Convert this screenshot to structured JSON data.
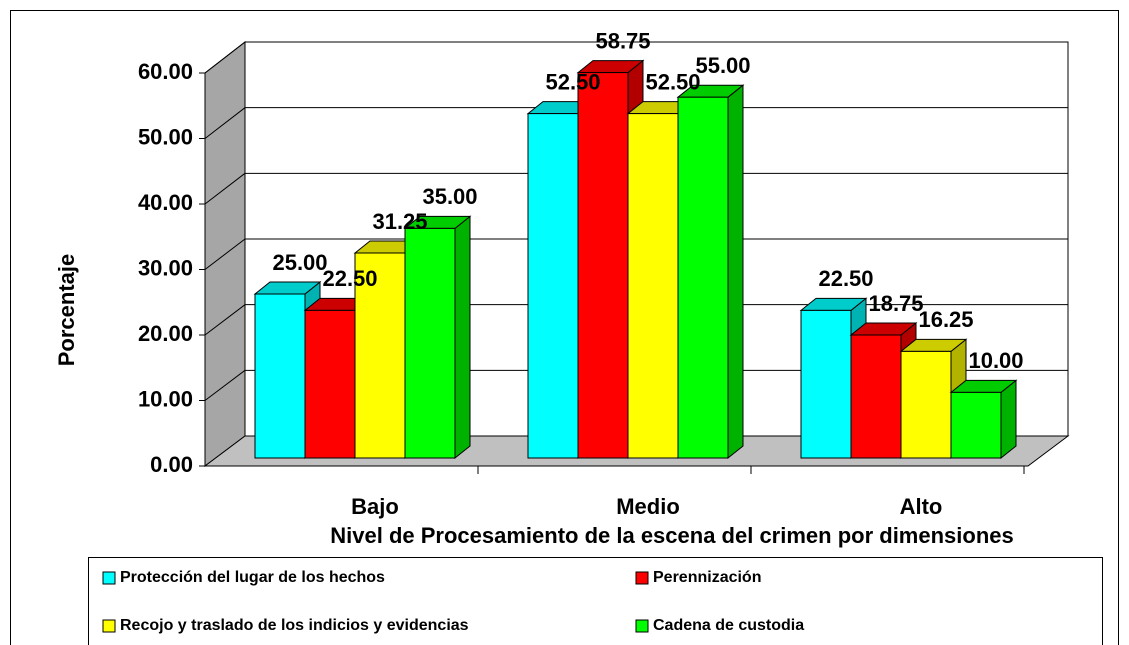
{
  "chart_data": {
    "type": "bar3d",
    "y_label": "Porcentaje",
    "x_label": "Nivel de Procesamiento de la escena del crimen  por dimensiones",
    "categories": [
      "Bajo",
      "Medio",
      "Alto"
    ],
    "series": [
      {
        "name": "Protección del lugar de los hechos",
        "color": "#00ffff",
        "values": [
          25.0,
          52.5,
          22.5
        ],
        "value_labels": [
          "25.00",
          "52.50",
          "22.50"
        ]
      },
      {
        "name": "Perennización",
        "color": "#ff0000",
        "values": [
          22.5,
          58.75,
          18.75
        ],
        "value_labels": [
          "22.50",
          "58.75",
          "18.75"
        ]
      },
      {
        "name": "Recojo y traslado de los indicios y evidencias",
        "color": "#ffff00",
        "values": [
          31.25,
          52.5,
          16.25
        ],
        "value_labels": [
          "31.25",
          "52.50",
          "16.25"
        ]
      },
      {
        "name": "Cadena de custodia",
        "color": "#00ff00",
        "values": [
          35.0,
          55.0,
          10.0
        ],
        "value_labels": [
          "35.00",
          "55.00",
          "10.00"
        ]
      }
    ],
    "ylim": [
      0,
      60
    ],
    "yticks": [
      {
        "value": 0,
        "label": "0.00"
      },
      {
        "value": 10,
        "label": "10.00"
      },
      {
        "value": 20,
        "label": "20.00"
      },
      {
        "value": 30,
        "label": "30.00"
      },
      {
        "value": 40,
        "label": "40.00"
      },
      {
        "value": 50,
        "label": "50.00"
      },
      {
        "value": 60,
        "label": "60.00"
      }
    ],
    "grid": true
  }
}
